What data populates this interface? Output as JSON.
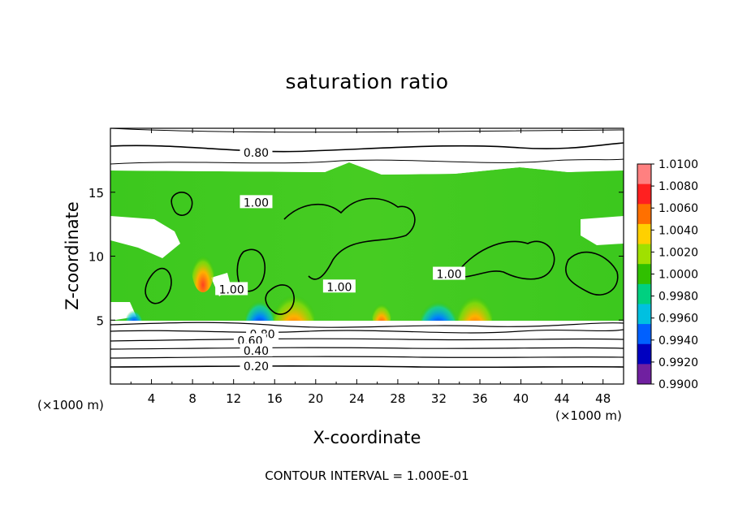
{
  "chart_data": {
    "type": "heatmap",
    "title": "saturation ratio",
    "xlabel": "X-coordinate",
    "ylabel": "Z-coordinate",
    "x_unit_left": "(×1000 m)",
    "x_unit_right": "(×1000 m)",
    "xlim": [
      0,
      50
    ],
    "ylim": [
      0,
      20
    ],
    "x_ticks": [
      4,
      8,
      12,
      16,
      20,
      24,
      28,
      32,
      36,
      40,
      44,
      48
    ],
    "y_ticks": [
      5,
      10,
      15
    ],
    "colorbar": {
      "levels": [
        "1.0100",
        "1.0080",
        "1.0060",
        "1.0040",
        "1.0020",
        "1.0000",
        "0.9980",
        "0.9960",
        "0.9940",
        "0.9920",
        "0.9900"
      ],
      "colors": [
        "#ff8080",
        "#ff2020",
        "#ff7000",
        "#ffd000",
        "#a0e000",
        "#30c000",
        "#00d080",
        "#00c0e0",
        "#0060ff",
        "#0000c0",
        "#7020a0"
      ]
    },
    "contour_labels": [
      {
        "text": "0.80",
        "x": 14.2,
        "y": 18.1
      },
      {
        "text": "1.00",
        "x": 14.2,
        "y": 14.2
      },
      {
        "text": "1.00",
        "x": 11.8,
        "y": 7.4
      },
      {
        "text": "1.00",
        "x": 22.3,
        "y": 7.6
      },
      {
        "text": "1.00",
        "x": 33.0,
        "y": 8.6
      },
      {
        "text": "0.80",
        "x": 14.8,
        "y": 3.9
      },
      {
        "text": "0.60",
        "x": 13.6,
        "y": 3.4
      },
      {
        "text": "0.40",
        "x": 14.2,
        "y": 2.6
      },
      {
        "text": "0.20",
        "x": 14.2,
        "y": 1.4
      }
    ],
    "footnote": "CONTOUR INTERVAL = 1.000E-01"
  }
}
